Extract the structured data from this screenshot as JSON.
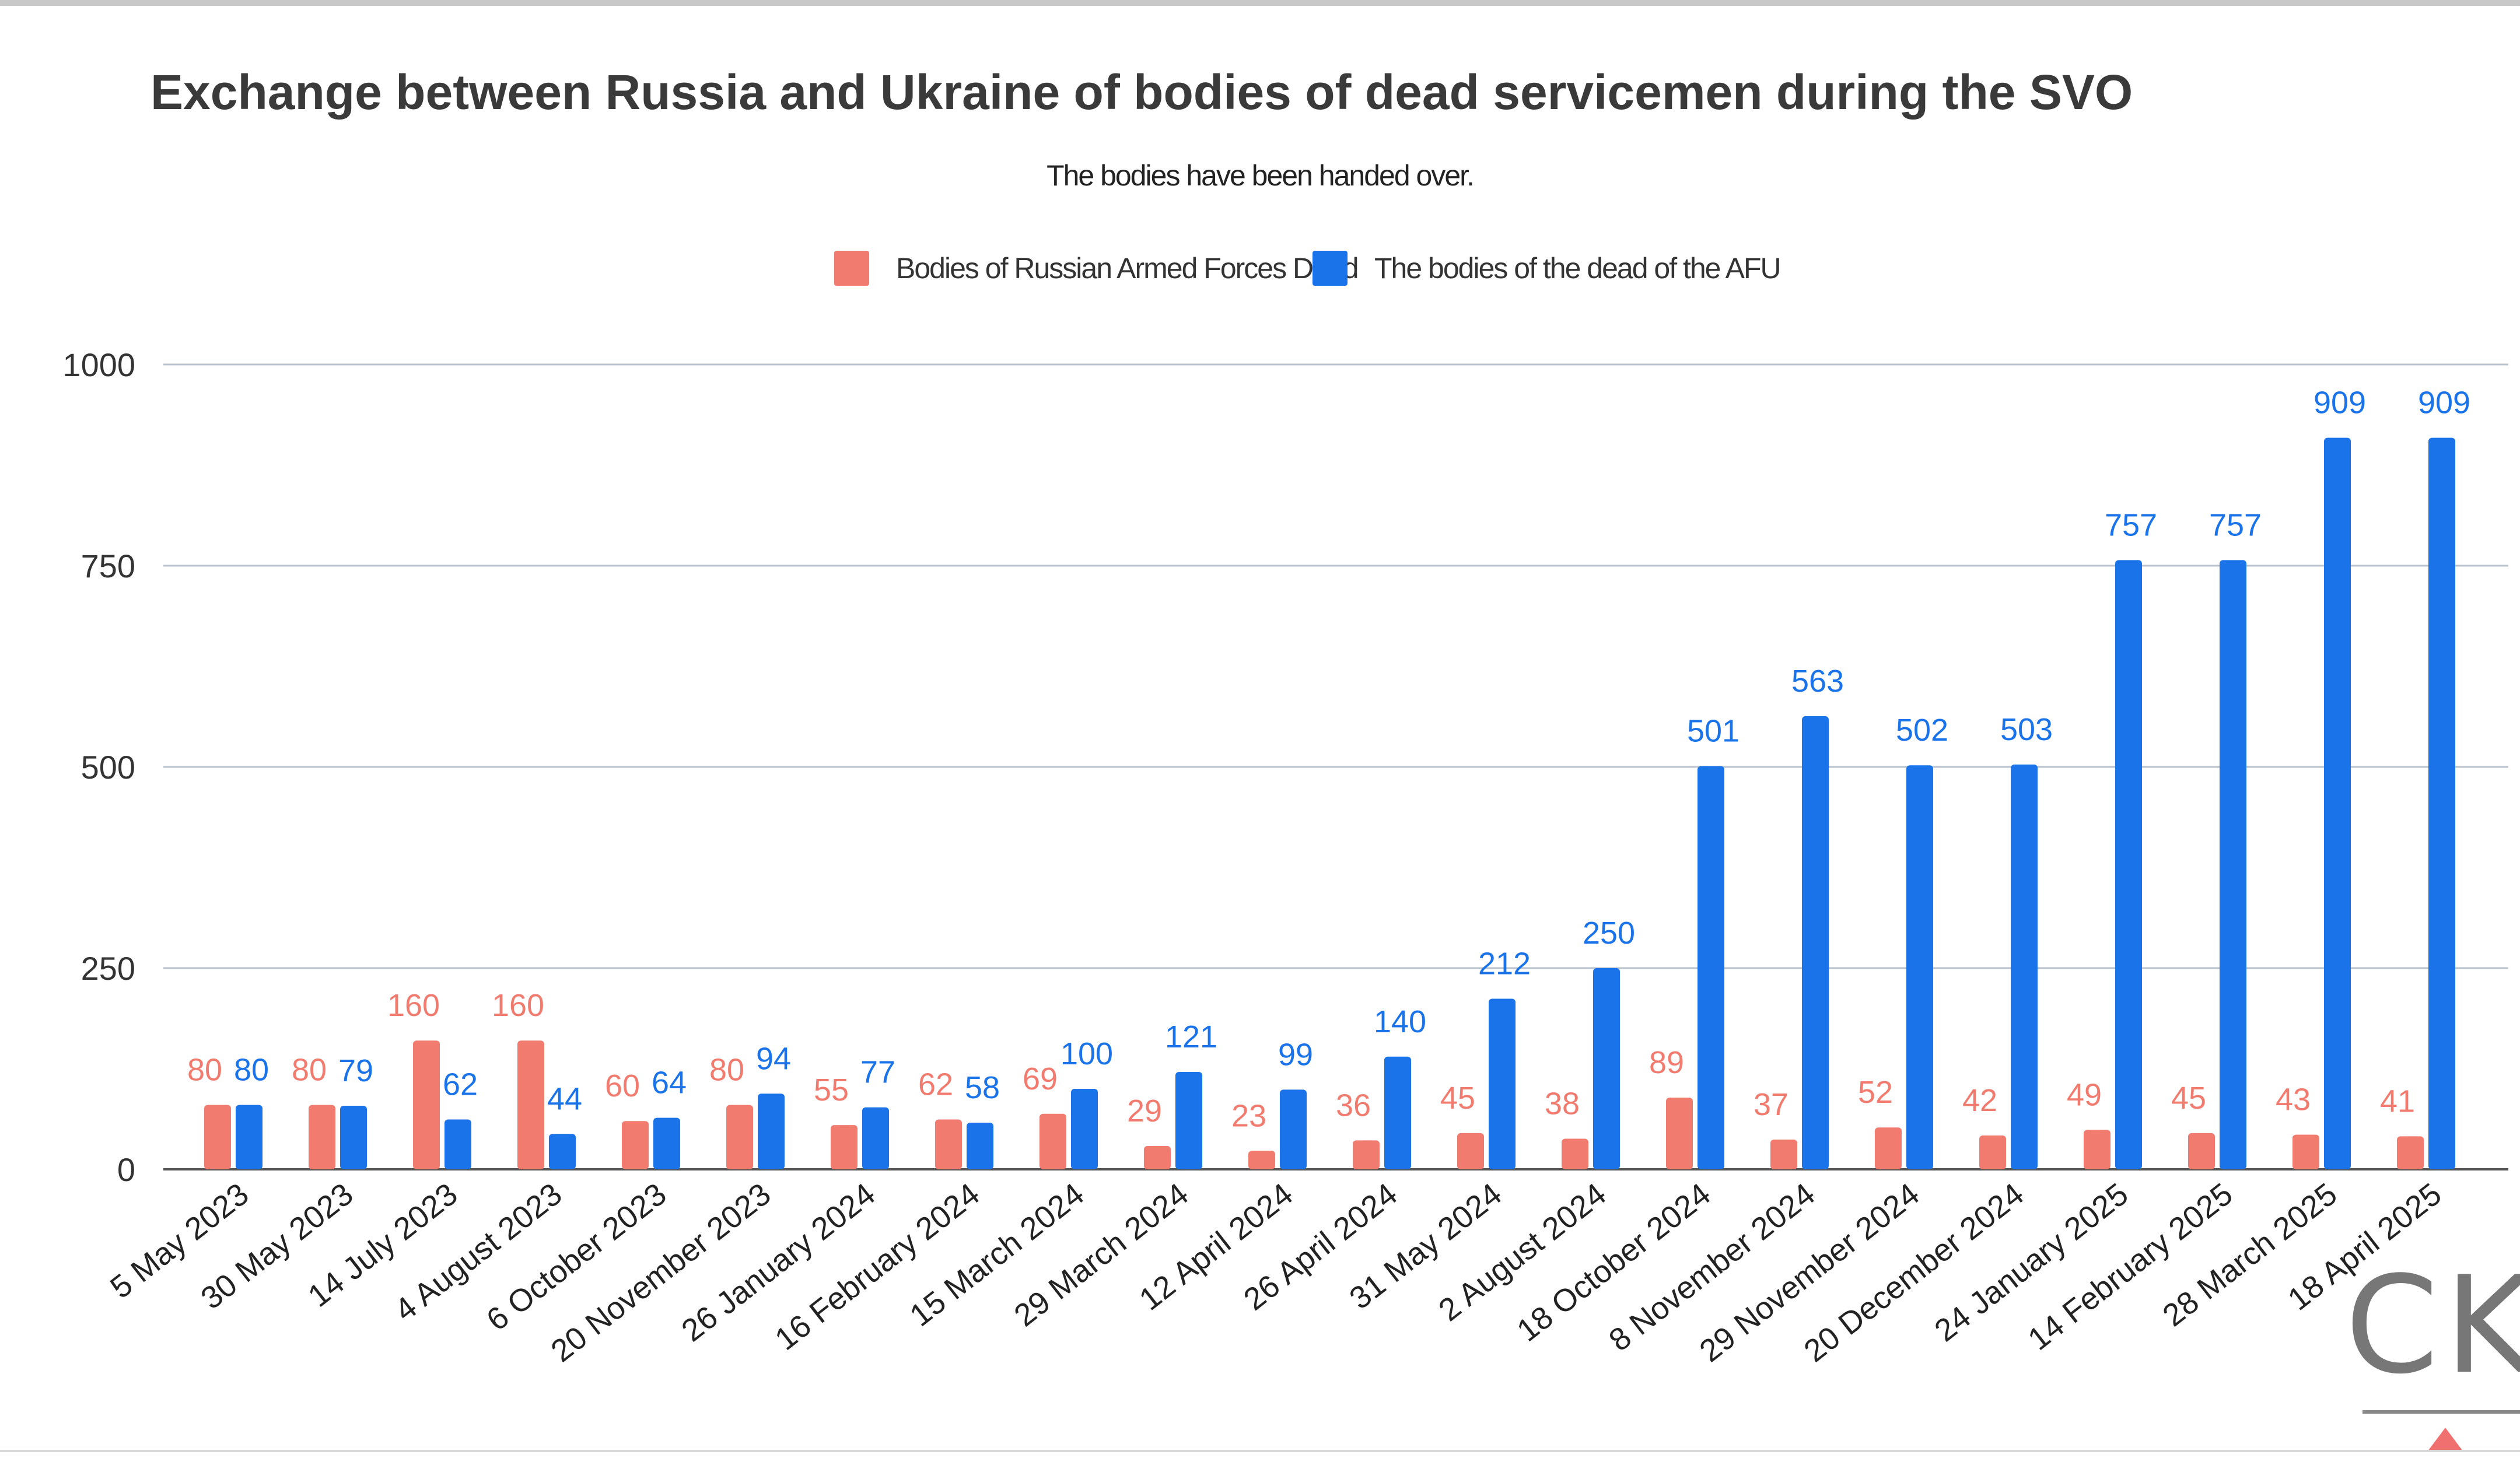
{
  "chart_data": {
    "type": "bar",
    "title": "Exchange between Russia and Ukraine of bodies of dead servicemen during the SVO",
    "subtitle": "The bodies have been handed over.",
    "categories": [
      "5 May 2023",
      "30 May 2023",
      "14 July 2023",
      "4 August 2023",
      "6 October 2023",
      "20 November 2023",
      "26 January 2024",
      "16 February 2024",
      "15 March 2024",
      "29 March 2024",
      "12 April 2024",
      "26 April 2024",
      "31 May 2024",
      "2 August 2024",
      "18 October 2024",
      "8 November 2024",
      "29 November 2024",
      "20 December 2024",
      "24 January 2025",
      "14 February 2025",
      "28 March 2025",
      "18 April 2025"
    ],
    "series": [
      {
        "name": "Bodies of Russian Armed Forces Dead",
        "color": "#f07b6e",
        "values": [
          80,
          80,
          160,
          160,
          60,
          80,
          55,
          62,
          69,
          29,
          23,
          36,
          45,
          38,
          89,
          37,
          52,
          42,
          49,
          45,
          43,
          41
        ]
      },
      {
        "name": "The bodies of the dead of the AFU",
        "color": "#1a73e8",
        "values": [
          80,
          79,
          62,
          44,
          64,
          94,
          77,
          58,
          100,
          121,
          99,
          140,
          212,
          250,
          501,
          563,
          502,
          503,
          757,
          757,
          909,
          909
        ]
      }
    ],
    "yticks": [
      "0",
      "250",
      "500",
      "750",
      "1000"
    ],
    "ylim": [
      0,
      1000
    ],
    "grid": true,
    "legend": "top-center",
    "watermark": "CK"
  }
}
